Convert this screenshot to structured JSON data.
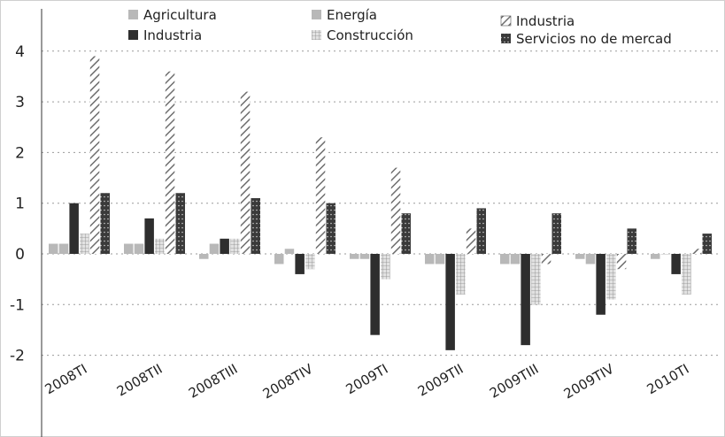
{
  "colors": {
    "agricultura": "#b8b8b8",
    "energia": "#bdbdbd",
    "industria": "#2e2e2e",
    "construccion": "#d4d4d4",
    "servicios": "#3a3a3a",
    "hatch": "#7a7a7a",
    "grid": "#9a9a9a",
    "axis": "#333333"
  },
  "chart_data": {
    "type": "bar",
    "categories": [
      "2008TI",
      "2008TII",
      "2008TIII",
      "2008TIV",
      "2009TI",
      "2009TII",
      "2009TIII",
      "2009TIV",
      "2010TI"
    ],
    "ylim": [
      -2.5,
      4.3
    ],
    "yticks": [
      -2,
      -1,
      0,
      1,
      2,
      3,
      4
    ],
    "grid": true,
    "legend_position": "top",
    "series": [
      {
        "name": "Agricultura",
        "style": "light-solid",
        "values": [
          0.2,
          0.2,
          -0.1,
          -0.2,
          -0.1,
          -0.2,
          -0.2,
          -0.1,
          -0.1
        ]
      },
      {
        "name": "Energía",
        "style": "light-solid",
        "values": [
          0.2,
          0.2,
          0.2,
          0.1,
          -0.1,
          -0.2,
          -0.2,
          -0.2,
          0.0
        ]
      },
      {
        "name": "Industria",
        "style": "dark-solid",
        "values": [
          1.0,
          0.7,
          0.3,
          -0.4,
          -1.6,
          -1.9,
          -1.8,
          -1.2,
          -0.4
        ]
      },
      {
        "name": "Construcción",
        "style": "light-grid",
        "values": [
          0.4,
          0.3,
          0.3,
          -0.3,
          -0.5,
          -0.8,
          -1.0,
          -0.9,
          -0.8
        ]
      },
      {
        "name": "Industria",
        "style": "diagonal-hatch",
        "values": [
          3.9,
          3.6,
          3.2,
          2.3,
          1.7,
          0.5,
          -0.2,
          -0.3,
          0.1
        ]
      },
      {
        "name": "Servicios no de mercad",
        "style": "dark-dotted",
        "values": [
          1.2,
          1.2,
          1.1,
          1.0,
          0.8,
          0.9,
          0.8,
          0.5,
          0.4
        ]
      }
    ]
  }
}
